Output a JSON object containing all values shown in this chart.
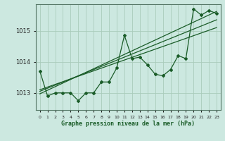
{
  "title": "Graphe pression niveau de la mer (hPa)",
  "background_color": "#cce8e0",
  "grid_color": "#aaccbb",
  "line_color": "#1a5c28",
  "x_values": [
    0,
    1,
    2,
    3,
    4,
    5,
    6,
    7,
    8,
    9,
    10,
    11,
    12,
    13,
    14,
    15,
    16,
    17,
    18,
    19,
    20,
    21,
    22,
    23
  ],
  "y_values": [
    1013.7,
    1012.9,
    1013.0,
    1013.0,
    1013.0,
    1012.75,
    1013.0,
    1013.0,
    1013.35,
    1013.35,
    1013.8,
    1014.85,
    1014.1,
    1014.15,
    1013.9,
    1013.6,
    1013.55,
    1013.75,
    1014.2,
    1014.1,
    1015.7,
    1015.5,
    1015.65,
    1015.55
  ],
  "ylim": [
    1012.45,
    1015.85
  ],
  "yticks": [
    1013,
    1014,
    1015
  ],
  "xlim": [
    -0.5,
    23.5
  ],
  "trend_line1_x": [
    0,
    23
  ],
  "trend_line1_y": [
    1012.97,
    1015.62
  ],
  "trend_line2_x": [
    0,
    23
  ],
  "trend_line2_y": [
    1013.05,
    1015.35
  ],
  "trend_line3_x": [
    0,
    23
  ],
  "trend_line3_y": [
    1013.1,
    1015.1
  ]
}
